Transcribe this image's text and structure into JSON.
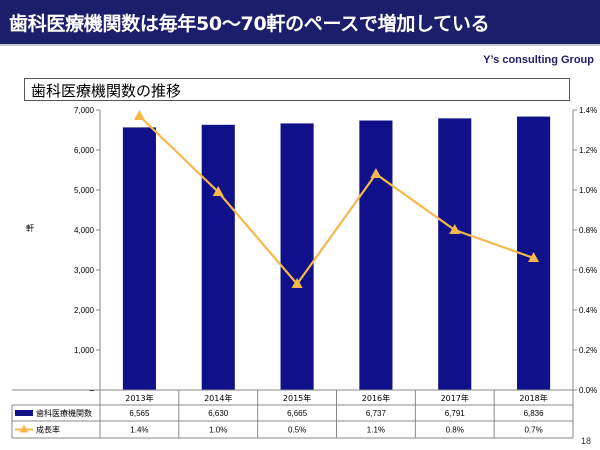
{
  "slide": {
    "title": "歯科医療機関数は毎年50〜70軒のペースで増加している",
    "company": "Y’s consulting Group",
    "subtitle": "歯科医療機関数の推移",
    "page_number": "18"
  },
  "colors": {
    "title_bg": "#1b1f6b",
    "bar": "#10108a",
    "line": "#f5b84a"
  },
  "chart_data": {
    "type": "bar",
    "title": "歯科医療機関数の推移",
    "categories": [
      "2013年",
      "2014年",
      "2015年",
      "2016年",
      "2017年",
      "2018年"
    ],
    "ylabel": "軒",
    "ylim": [
      0,
      7000
    ],
    "y_ticks": [
      "–",
      "1,000",
      "2,000",
      "3,000",
      "4,000",
      "5,000",
      "6,000",
      "7,000"
    ],
    "y2lim": [
      0,
      1.4
    ],
    "y2_ticks": [
      "0.0%",
      "0.2%",
      "0.4%",
      "0.6%",
      "0.8%",
      "1.0%",
      "1.2%",
      "1.4%"
    ],
    "grid": false,
    "series": [
      {
        "name": "歯科医療機関数",
        "type": "bar",
        "axis": "left",
        "values": [
          6565,
          6630,
          6665,
          6737,
          6791,
          6836
        ],
        "labels": [
          "6,565",
          "6,630",
          "6,665",
          "6,737",
          "6,791",
          "6,836"
        ]
      },
      {
        "name": "成長率",
        "type": "line",
        "axis": "right",
        "values": [
          1.37,
          0.99,
          0.53,
          1.08,
          0.8,
          0.66
        ],
        "labels": [
          "1.4%",
          "1.0%",
          "0.5%",
          "1.1%",
          "0.8%",
          "0.7%"
        ]
      }
    ]
  }
}
